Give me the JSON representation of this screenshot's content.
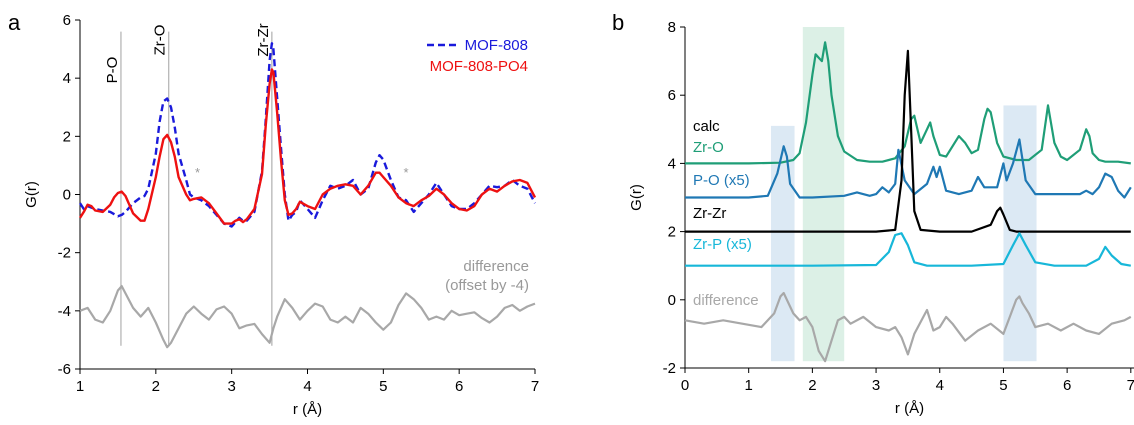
{
  "panels": {
    "a": {
      "letter": "a"
    },
    "b": {
      "letter": "b"
    }
  },
  "chart_data": [
    {
      "type": "line",
      "panel": "a",
      "xlabel": "r (Å)",
      "ylabel": "G(r)",
      "xlim": [
        1,
        7
      ],
      "ylim": [
        -6,
        6
      ],
      "xticks": [
        1,
        2,
        3,
        4,
        5,
        6,
        7
      ],
      "yticks": [
        -6,
        -4,
        -2,
        0,
        2,
        4,
        6
      ],
      "grid": false,
      "legend_position": "top-right",
      "annotations": [
        {
          "text": "P-O",
          "x": 1.54
        },
        {
          "text": "Zr-O",
          "x": 2.17
        },
        {
          "text": "Zr-Zr",
          "x": 3.53
        }
      ],
      "stars": [
        {
          "text": "*",
          "x": 2.55,
          "y": 0.6
        },
        {
          "text": "*",
          "x": 5.3,
          "y": 0.6
        }
      ],
      "diff_label": [
        "difference",
        "(offset by -4)"
      ],
      "vlines": [
        1.54,
        2.17,
        3.53
      ],
      "vline_range": [
        -5.2,
        5.6
      ],
      "series": [
        {
          "name": "MOF-808",
          "color": "#1a1adb",
          "dash": true,
          "x": [
            1.0,
            1.05,
            1.1,
            1.15,
            1.2,
            1.3,
            1.4,
            1.5,
            1.55,
            1.6,
            1.7,
            1.8,
            1.85,
            1.9,
            2.0,
            2.05,
            2.1,
            2.15,
            2.2,
            2.25,
            2.3,
            2.4,
            2.45,
            2.5,
            2.6,
            2.7,
            2.8,
            2.9,
            3.0,
            3.05,
            3.1,
            3.15,
            3.2,
            3.3,
            3.4,
            3.45,
            3.5,
            3.53,
            3.55,
            3.6,
            3.65,
            3.7,
            3.75,
            3.8,
            3.85,
            3.9,
            4.0,
            4.1,
            4.2,
            4.3,
            4.4,
            4.5,
            4.6,
            4.7,
            4.8,
            4.9,
            4.95,
            5.0,
            5.1,
            5.2,
            5.3,
            5.4,
            5.5,
            5.6,
            5.7,
            5.8,
            5.9,
            6.0,
            6.1,
            6.2,
            6.3,
            6.4,
            6.5,
            6.6,
            6.7,
            6.8,
            6.9,
            7.0
          ],
          "y": [
            -0.3,
            -0.5,
            -0.4,
            -0.45,
            -0.5,
            -0.55,
            -0.6,
            -0.75,
            -0.7,
            -0.6,
            -0.3,
            -0.1,
            -0.05,
            0.2,
            1.4,
            2.5,
            3.2,
            3.3,
            3.0,
            2.3,
            1.4,
            0.5,
            0.0,
            -0.1,
            -0.2,
            -0.4,
            -0.7,
            -1.0,
            -1.1,
            -0.95,
            -0.8,
            -0.9,
            -0.9,
            -0.6,
            0.8,
            2.6,
            4.6,
            5.2,
            5.0,
            3.3,
            1.6,
            0.0,
            -0.9,
            -0.7,
            -0.6,
            -0.2,
            -0.5,
            -0.8,
            -0.2,
            0.3,
            0.2,
            0.3,
            0.5,
            0.0,
            0.2,
            1.1,
            1.35,
            1.2,
            0.5,
            -0.1,
            -0.2,
            -0.6,
            -0.3,
            0.0,
            0.4,
            0.0,
            -0.4,
            -0.5,
            -0.5,
            -0.3,
            0.0,
            0.3,
            0.25,
            0.3,
            0.5,
            0.3,
            0.2,
            -0.3
          ]
        },
        {
          "name": "MOF-808-PO4",
          "color": "#ee1111",
          "dash": false,
          "x": [
            1.0,
            1.05,
            1.1,
            1.15,
            1.2,
            1.3,
            1.4,
            1.45,
            1.5,
            1.55,
            1.6,
            1.65,
            1.7,
            1.8,
            1.85,
            1.9,
            2.0,
            2.05,
            2.1,
            2.15,
            2.2,
            2.25,
            2.3,
            2.4,
            2.45,
            2.5,
            2.6,
            2.7,
            2.8,
            2.9,
            3.0,
            3.05,
            3.1,
            3.15,
            3.2,
            3.3,
            3.4,
            3.45,
            3.5,
            3.53,
            3.55,
            3.6,
            3.65,
            3.7,
            3.75,
            3.8,
            3.85,
            3.9,
            4.0,
            4.1,
            4.2,
            4.3,
            4.4,
            4.5,
            4.6,
            4.7,
            4.8,
            4.9,
            4.95,
            5.0,
            5.1,
            5.2,
            5.3,
            5.4,
            5.5,
            5.6,
            5.7,
            5.8,
            5.9,
            6.0,
            6.1,
            6.2,
            6.3,
            6.4,
            6.5,
            6.6,
            6.7,
            6.8,
            6.9,
            7.0
          ],
          "y": [
            -0.8,
            -0.6,
            -0.35,
            -0.4,
            -0.55,
            -0.6,
            -0.35,
            -0.1,
            0.05,
            0.1,
            -0.05,
            -0.35,
            -0.65,
            -0.9,
            -0.9,
            -0.5,
            0.6,
            1.3,
            1.9,
            2.05,
            1.8,
            1.3,
            0.6,
            0.0,
            -0.2,
            -0.15,
            -0.1,
            -0.3,
            -0.65,
            -1.0,
            -1.0,
            -0.9,
            -0.85,
            -0.95,
            -0.85,
            -0.5,
            0.7,
            2.4,
            3.8,
            4.3,
            4.2,
            2.8,
            1.2,
            -0.2,
            -0.7,
            -0.65,
            -0.5,
            -0.25,
            -0.4,
            -0.5,
            0.0,
            0.2,
            0.3,
            0.35,
            0.3,
            0.0,
            0.3,
            0.75,
            0.75,
            0.6,
            0.3,
            -0.1,
            -0.3,
            -0.4,
            -0.2,
            -0.05,
            0.2,
            0.0,
            -0.3,
            -0.5,
            -0.55,
            -0.4,
            0.0,
            0.2,
            0.1,
            0.3,
            0.45,
            0.5,
            0.4,
            -0.1
          ]
        },
        {
          "name": "",
          "color": "#a8a8a8",
          "dash": false,
          "x": [
            1.0,
            1.1,
            1.2,
            1.3,
            1.4,
            1.5,
            1.55,
            1.6,
            1.7,
            1.8,
            1.9,
            2.0,
            2.1,
            2.15,
            2.2,
            2.3,
            2.4,
            2.5,
            2.6,
            2.7,
            2.8,
            2.9,
            3.0,
            3.1,
            3.2,
            3.3,
            3.4,
            3.5,
            3.55,
            3.6,
            3.7,
            3.8,
            3.9,
            4.0,
            4.1,
            4.2,
            4.3,
            4.4,
            4.5,
            4.6,
            4.7,
            4.8,
            4.9,
            5.0,
            5.1,
            5.2,
            5.3,
            5.4,
            5.5,
            5.6,
            5.7,
            5.8,
            5.9,
            6.0,
            6.1,
            6.2,
            6.3,
            6.4,
            6.5,
            6.6,
            6.7,
            6.8,
            6.9,
            7.0
          ],
          "y": [
            -4.0,
            -3.9,
            -4.3,
            -4.4,
            -4.0,
            -3.3,
            -3.15,
            -3.4,
            -3.9,
            -4.2,
            -3.9,
            -4.4,
            -5.0,
            -5.25,
            -5.1,
            -4.6,
            -4.1,
            -3.85,
            -4.1,
            -4.3,
            -3.95,
            -3.85,
            -4.1,
            -4.6,
            -4.5,
            -4.45,
            -4.8,
            -5.1,
            -4.6,
            -4.2,
            -3.6,
            -3.9,
            -4.3,
            -4.0,
            -3.75,
            -3.85,
            -4.3,
            -4.4,
            -4.2,
            -4.4,
            -3.9,
            -4.1,
            -4.4,
            -4.65,
            -4.4,
            -3.8,
            -3.4,
            -3.6,
            -3.9,
            -4.3,
            -4.2,
            -4.3,
            -4.0,
            -4.15,
            -4.1,
            -4.05,
            -4.25,
            -4.4,
            -4.2,
            -3.9,
            -3.8,
            -4.0,
            -3.85,
            -3.75
          ]
        }
      ]
    },
    {
      "type": "line",
      "panel": "b",
      "xlabel": "r (Å)",
      "ylabel": "G(r)",
      "xlim": [
        0,
        7
      ],
      "ylim": [
        -2,
        8
      ],
      "xticks": [
        0,
        1,
        2,
        3,
        4,
        5,
        6,
        7
      ],
      "yticks": [
        -2,
        0,
        2,
        4,
        6,
        8
      ],
      "grid": false,
      "shaded_regions": [
        {
          "x": [
            1.35,
            1.72
          ],
          "y": [
            -1.8,
            5.1
          ],
          "color": "#dce9f4"
        },
        {
          "x": [
            1.85,
            2.5
          ],
          "y": [
            -1.8,
            8.0
          ],
          "color": "#dcf0e6"
        },
        {
          "x": [
            5.0,
            5.52
          ],
          "y": [
            -1.8,
            5.7
          ],
          "color": "#dce9f4"
        }
      ],
      "series": [
        {
          "name": "calc",
          "color": "#000000",
          "x": [],
          "y": []
        },
        {
          "name": "Zr-O",
          "color": "#1f9e77",
          "x": [
            0,
            0.5,
            1.0,
            1.5,
            1.7,
            1.8,
            1.9,
            2.0,
            2.05,
            2.1,
            2.15,
            2.2,
            2.25,
            2.3,
            2.4,
            2.5,
            2.7,
            2.9,
            3.1,
            3.3,
            3.45,
            3.55,
            3.6,
            3.7,
            3.8,
            3.85,
            3.9,
            4.0,
            4.1,
            4.2,
            4.3,
            4.4,
            4.5,
            4.6,
            4.7,
            4.75,
            4.8,
            4.9,
            5.0,
            5.2,
            5.4,
            5.6,
            5.7,
            5.8,
            5.9,
            6.0,
            6.2,
            6.3,
            6.35,
            6.4,
            6.5,
            6.6,
            6.8,
            7.0
          ],
          "y": [
            4.0,
            4.0,
            4.0,
            4.02,
            4.1,
            4.3,
            5.2,
            6.6,
            7.2,
            7.1,
            7.0,
            7.55,
            7.0,
            6.0,
            4.8,
            4.35,
            4.1,
            4.05,
            4.05,
            4.15,
            4.5,
            5.3,
            5.4,
            4.6,
            5.0,
            5.2,
            4.8,
            4.25,
            4.2,
            4.5,
            4.8,
            4.6,
            4.3,
            4.4,
            5.3,
            5.6,
            5.5,
            4.6,
            4.2,
            4.1,
            4.1,
            4.4,
            5.7,
            4.6,
            4.2,
            4.1,
            4.4,
            5.0,
            4.8,
            4.3,
            4.1,
            4.05,
            4.05,
            4.0
          ]
        },
        {
          "name": "P-O (x5)",
          "color": "#1f78b4",
          "x": [
            0,
            0.5,
            1.0,
            1.3,
            1.45,
            1.55,
            1.6,
            1.65,
            1.8,
            2.0,
            2.5,
            2.7,
            2.9,
            3.0,
            3.1,
            3.2,
            3.3,
            3.35,
            3.45,
            3.6,
            3.8,
            3.9,
            3.95,
            4.0,
            4.1,
            4.3,
            4.5,
            4.6,
            4.7,
            4.9,
            5.0,
            5.05,
            5.15,
            5.25,
            5.35,
            5.5,
            5.8,
            6.0,
            6.2,
            6.3,
            6.4,
            6.5,
            6.6,
            6.7,
            6.8,
            6.9,
            7.0
          ],
          "y": [
            3.0,
            3.0,
            3.0,
            3.05,
            3.7,
            4.5,
            4.2,
            3.4,
            3.0,
            3.0,
            3.05,
            3.15,
            3.05,
            3.1,
            3.3,
            3.15,
            3.4,
            4.4,
            3.5,
            3.1,
            3.4,
            3.9,
            3.6,
            3.9,
            3.2,
            3.1,
            3.2,
            3.6,
            3.3,
            3.3,
            4.0,
            3.5,
            4.0,
            4.7,
            3.5,
            3.1,
            3.1,
            3.1,
            3.1,
            3.2,
            3.1,
            3.3,
            3.7,
            3.6,
            3.2,
            3.0,
            3.3
          ]
        },
        {
          "name": "Zr-Zr",
          "color": "#000000",
          "x": [
            0,
            1.0,
            2.0,
            3.0,
            3.3,
            3.4,
            3.45,
            3.5,
            3.55,
            3.6,
            3.7,
            4.0,
            4.5,
            4.8,
            4.9,
            4.95,
            5.0,
            5.1,
            5.2,
            5.5,
            6.0,
            7.0
          ],
          "y": [
            2.0,
            2.0,
            2.0,
            2.0,
            2.05,
            3.5,
            6.0,
            7.3,
            5.0,
            2.6,
            2.05,
            2.0,
            2.0,
            2.2,
            2.6,
            2.7,
            2.5,
            2.05,
            2.0,
            2.0,
            2.0,
            2.0
          ],
          "no_legend": true
        },
        {
          "name": "Zr-P (x5)",
          "color": "#17b7d9",
          "x": [
            0,
            1.0,
            2.0,
            3.0,
            3.2,
            3.3,
            3.4,
            3.5,
            3.6,
            3.8,
            4.5,
            5.0,
            5.15,
            5.25,
            5.35,
            5.5,
            5.8,
            6.3,
            6.5,
            6.6,
            6.7,
            6.85,
            7.0
          ],
          "y": [
            1.0,
            1.0,
            1.0,
            1.02,
            1.4,
            1.9,
            1.95,
            1.6,
            1.1,
            1.0,
            1.0,
            1.05,
            1.6,
            1.95,
            1.6,
            1.1,
            1.0,
            1.0,
            1.2,
            1.55,
            1.3,
            1.05,
            1.0
          ]
        },
        {
          "name": "difference",
          "color": "#a8a8a8",
          "x": [
            0,
            0.3,
            0.6,
            0.9,
            1.2,
            1.4,
            1.5,
            1.55,
            1.6,
            1.7,
            1.8,
            1.9,
            2.0,
            2.1,
            2.2,
            2.3,
            2.4,
            2.5,
            2.6,
            2.8,
            3.0,
            3.2,
            3.3,
            3.4,
            3.5,
            3.6,
            3.8,
            3.9,
            4.0,
            4.1,
            4.2,
            4.4,
            4.6,
            4.8,
            5.0,
            5.1,
            5.2,
            5.25,
            5.3,
            5.4,
            5.5,
            5.7,
            5.9,
            6.1,
            6.3,
            6.5,
            6.7,
            6.9,
            7.0
          ],
          "y": [
            -0.6,
            -0.7,
            -0.6,
            -0.7,
            -0.8,
            -0.4,
            0.1,
            0.2,
            0.0,
            -0.4,
            -0.6,
            -0.5,
            -0.8,
            -1.5,
            -1.8,
            -1.2,
            -0.6,
            -0.5,
            -0.7,
            -0.5,
            -0.8,
            -0.9,
            -0.8,
            -1.1,
            -1.6,
            -1.0,
            -0.3,
            -0.9,
            -0.8,
            -0.5,
            -0.7,
            -1.2,
            -0.9,
            -0.7,
            -1.0,
            -0.5,
            0.0,
            0.1,
            -0.1,
            -0.4,
            -0.8,
            -0.7,
            -0.9,
            -0.7,
            -0.9,
            -1.0,
            -0.7,
            -0.6,
            -0.5
          ]
        }
      ]
    }
  ]
}
